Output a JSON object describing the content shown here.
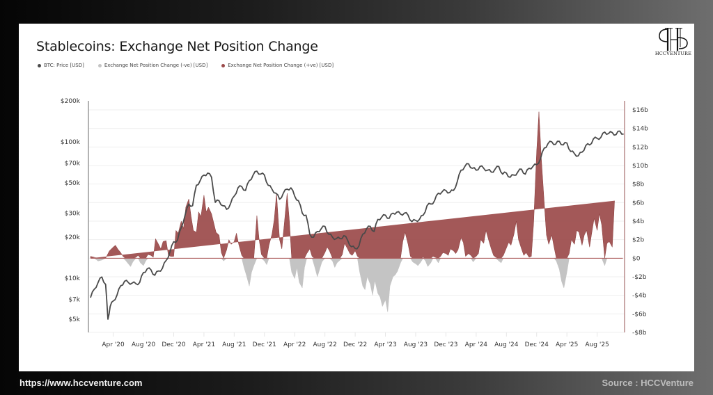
{
  "card": {
    "title": "Stablecoins: Exchange Net Position Change",
    "legend": [
      {
        "label": "BTC: Price [USD]",
        "color": "#4a4a4a"
      },
      {
        "label": "Exchange Net Position Change (-ve) [USD]",
        "color": "#c4c4c4"
      },
      {
        "label": "Exchange Net Position Change (+ve) [USD]",
        "color": "#9b4a4a"
      }
    ],
    "logo_text": "HCCVENTURE"
  },
  "footer": {
    "url": "https://www.hccventure.com",
    "source": "Source : HCCVenture"
  },
  "chart_data": {
    "type": "line",
    "title": "Stablecoins: Exchange Net Position Change",
    "x_start": "2020-01",
    "x_end": "2025-11",
    "xtick_labels": [
      "Apr '20",
      "Aug '20",
      "Dec '20",
      "Apr '21",
      "Aug '21",
      "Dec '21",
      "Apr '22",
      "Aug '22",
      "Dec '22",
      "Apr '23",
      "Aug '23",
      "Dec '23",
      "Apr '24",
      "Aug '24",
      "Dec '24",
      "Apr '25",
      "Aug '25"
    ],
    "xtick_months": [
      3,
      7,
      11,
      15,
      19,
      23,
      27,
      31,
      35,
      39,
      43,
      47,
      51,
      55,
      59,
      63,
      67
    ],
    "left_axis": {
      "scale": "log",
      "range": [
        4200,
        200000
      ],
      "tick_values": [
        5000,
        7000,
        10000,
        20000,
        30000,
        50000,
        70000,
        100000,
        200000
      ],
      "tick_labels": [
        "$5k",
        "$7k",
        "$10k",
        "$20k",
        "$30k",
        "$50k",
        "$70k",
        "$100k",
        "$200k"
      ]
    },
    "right_axis": {
      "scale": "linear",
      "range": [
        -8,
        17
      ],
      "unit": "billion USD",
      "tick_values": [
        -8,
        -6,
        -4,
        -2,
        0,
        2,
        4,
        6,
        8,
        10,
        12,
        14,
        16
      ],
      "tick_labels": [
        "-$8b",
        "-$6b",
        "-$4b",
        "-$2b",
        "$0",
        "$2b",
        "$4b",
        "$6b",
        "$8b",
        "$10b",
        "$12b",
        "$14b",
        "$16b"
      ]
    },
    "series": [
      {
        "name": "BTC: Price [USD]",
        "axis": "left",
        "color": "#4a4a4a",
        "months": [
          0,
          0.5,
          1,
          1.5,
          2,
          2.3,
          2.6,
          3,
          3.5,
          4,
          4.5,
          5,
          5.5,
          6,
          6.5,
          7,
          7.5,
          8,
          8.5,
          9,
          9.5,
          10,
          10.5,
          11,
          11.5,
          12,
          12.5,
          13,
          13.5,
          14,
          14.5,
          15,
          15.5,
          16,
          16.5,
          17,
          17.5,
          18,
          18.5,
          19,
          19.5,
          20,
          20.5,
          21,
          21.5,
          22,
          22.5,
          23,
          23.5,
          24,
          24.5,
          25,
          25.5,
          26,
          26.5,
          27,
          27.5,
          28,
          28.5,
          29,
          29.5,
          30,
          30.5,
          31,
          31.5,
          32,
          32.5,
          33,
          33.5,
          34,
          34.5,
          35,
          35.5,
          36,
          36.5,
          37,
          37.5,
          38,
          38.5,
          39,
          39.5,
          40,
          40.5,
          41,
          41.5,
          42,
          42.5,
          43,
          43.5,
          44,
          44.5,
          45,
          45.5,
          46,
          46.5,
          47,
          47.5,
          48,
          48.5,
          49,
          49.5,
          50,
          50.5,
          51,
          51.5,
          52,
          52.5,
          53,
          53.5,
          54,
          54.5,
          55,
          55.5,
          56,
          56.5,
          57,
          57.5,
          58,
          58.5,
          59,
          59.5,
          60,
          60.5,
          61,
          61.5,
          62,
          62.5,
          63,
          63.5,
          64,
          64.5,
          65,
          65.5,
          66,
          66.5,
          67,
          67.5,
          68,
          68.5,
          69,
          69.5,
          70,
          70.5
        ],
        "values": [
          7200,
          8300,
          9300,
          10200,
          9000,
          5000,
          6200,
          6800,
          7500,
          8800,
          9500,
          9300,
          9200,
          9100,
          9300,
          11000,
          11700,
          11500,
          10500,
          11300,
          11800,
          13500,
          15500,
          18500,
          19000,
          23500,
          29000,
          35000,
          34000,
          48000,
          52000,
          57000,
          59000,
          55000,
          36000,
          37000,
          34000,
          32000,
          35000,
          40000,
          46000,
          47000,
          44000,
          52000,
          57000,
          61000,
          58000,
          57000,
          48000,
          45000,
          42000,
          38000,
          42000,
          45000,
          46000,
          40000,
          37000,
          30000,
          29000,
          21000,
          20000,
          22000,
          23000,
          24000,
          21000,
          20000,
          19500,
          19500,
          20500,
          19000,
          17000,
          16500,
          17200,
          21000,
          23000,
          24000,
          22000,
          27000,
          28000,
          29000,
          27500,
          30000,
          30500,
          29500,
          30000,
          29000,
          26000,
          26500,
          27000,
          29000,
          34000,
          35000,
          37000,
          42000,
          43000,
          44000,
          42500,
          44000,
          51000,
          62000,
          66000,
          69000,
          64000,
          62000,
          66000,
          64000,
          62000,
          60000,
          63000,
          66000,
          58000,
          59000,
          55000,
          57000,
          60000,
          63000,
          58000,
          64000,
          66000,
          68000,
          75000,
          90000,
          97000,
          100000,
          96000,
          101000,
          95000,
          98000,
          85000,
          82000,
          79000,
          84000,
          94000,
          95000,
          105000,
          106000,
          108000,
          118000,
          115000,
          117000,
          113000,
          120000,
          114000,
          110000,
          121000,
          114000,
          112000
        ]
      },
      {
        "name": "Exchange Net Position Change [USD]",
        "axis": "right",
        "color_positive": "#9b4a4a",
        "color_negative": "#c4c4c4",
        "months": [
          0,
          0.5,
          1,
          1.5,
          2,
          2.5,
          3,
          3.3,
          3.6,
          4,
          4.3,
          4.6,
          5,
          5.3,
          5.6,
          6,
          6.3,
          6.6,
          7,
          7.3,
          7.6,
          8,
          8.3,
          8.6,
          9,
          9.3,
          9.6,
          10,
          10.3,
          10.6,
          11,
          11.3,
          11.6,
          12,
          12.3,
          12.6,
          13,
          13.3,
          13.6,
          14,
          14.3,
          14.6,
          15,
          15.3,
          15.6,
          16,
          16.3,
          16.6,
          17,
          17.3,
          17.6,
          18,
          18.3,
          18.6,
          19,
          19.3,
          19.6,
          20,
          20.3,
          20.6,
          21,
          21.3,
          21.6,
          22,
          22.3,
          22.6,
          23,
          23.3,
          23.6,
          24,
          24.3,
          24.6,
          25,
          25.3,
          25.6,
          26,
          26.3,
          26.6,
          27,
          27.3,
          27.6,
          28,
          28.3,
          28.6,
          29,
          29.3,
          29.6,
          30,
          30.3,
          30.6,
          31,
          31.3,
          31.6,
          32,
          32.3,
          32.6,
          33,
          33.3,
          33.6,
          34,
          34.3,
          34.6,
          35,
          35.3,
          35.6,
          36,
          36.3,
          36.6,
          37,
          37.3,
          37.6,
          38,
          38.3,
          38.6,
          39,
          39.3,
          39.6,
          40,
          40.3,
          40.6,
          41,
          41.3,
          41.6,
          42,
          42.3,
          42.6,
          43,
          43.3,
          43.6,
          44,
          44.3,
          44.6,
          45,
          45.3,
          45.6,
          46,
          46.3,
          46.6,
          47,
          47.3,
          47.6,
          48,
          48.3,
          48.6,
          49,
          49.3,
          49.6,
          50,
          50.3,
          50.6,
          51,
          51.3,
          51.6,
          52,
          52.3,
          52.6,
          53,
          53.3,
          53.6,
          54,
          54.3,
          54.6,
          55,
          55.3,
          55.6,
          56,
          56.3,
          56.6,
          57,
          57.3,
          57.6,
          58,
          58.3,
          58.6,
          59,
          59.3,
          59.6,
          60,
          60.3,
          60.6,
          61,
          61.3,
          61.6,
          62,
          62.3,
          62.6,
          63,
          63.3,
          63.6,
          64,
          64.3,
          64.6,
          65,
          65.3,
          65.6,
          66,
          66.3,
          66.6,
          67,
          67.3,
          67.6,
          68,
          68.3,
          68.6,
          69,
          69.3,
          69.6,
          70,
          70.4
        ],
        "values": [
          0.2,
          0.1,
          -0.3,
          -0.2,
          0,
          0.8,
          1.2,
          1.4,
          1.0,
          0.6,
          0.2,
          -0.2,
          -0.6,
          -0.9,
          -0.4,
          0.1,
          0.3,
          -0.5,
          -0.8,
          -0.3,
          0.4,
          0.3,
          0.1,
          2.1,
          1.5,
          1.0,
          1.8,
          1.9,
          0.3,
          0.2,
          0.2,
          3.0,
          2.7,
          4.0,
          3.2,
          5.5,
          6.4,
          4.5,
          3.0,
          2.8,
          5.0,
          4.5,
          6.8,
          5.0,
          5.5,
          4.8,
          3.8,
          2.8,
          2.5,
          0.6,
          -0.3,
          0.9,
          2.0,
          1.5,
          1.8,
          2.7,
          1.5,
          0.3,
          -1.0,
          -1.8,
          -3.0,
          -1.5,
          -0.8,
          4.6,
          2.0,
          0.4,
          -0.3,
          -0.7,
          1.4,
          2.6,
          4.2,
          7.0,
          2.0,
          1.0,
          3.5,
          7.0,
          4.0,
          -1.5,
          -2.2,
          -1.0,
          -2.6,
          -3.2,
          -1.0,
          0.5,
          1.0,
          0.2,
          -0.8,
          -2.0,
          -1.2,
          -0.4,
          0.6,
          1.2,
          0.8,
          -0.3,
          -1.0,
          -0.5,
          -0.2,
          0.4,
          1.6,
          1.0,
          0.5,
          0.3,
          0.8,
          0.2,
          -1.5,
          -3.0,
          -3.4,
          -2.0,
          -2.8,
          -4.0,
          -2.4,
          -3.8,
          -4.2,
          -5.2,
          -4.5,
          -5.8,
          -3.0,
          -2.0,
          -1.8,
          -1.4,
          -0.5,
          1.8,
          2.8,
          1.5,
          0.2,
          -0.4,
          -0.6,
          -0.8,
          -0.5,
          0.1,
          -0.3,
          -0.9,
          -0.5,
          0.2,
          0.1,
          -0.5,
          0.2,
          0.6,
          0.5,
          0.3,
          1.0,
          0.8,
          0.5,
          0.9,
          2.2,
          1.7,
          0.2,
          0.5,
          0.3,
          -0.4,
          0.2,
          0.5,
          2.0,
          1.6,
          3.0,
          2.1,
          1.0,
          0.3,
          0.1,
          -0.3,
          -0.5,
          0.3,
          1.1,
          1.7,
          1.4,
          2.6,
          4.0,
          2.0,
          1.0,
          0.3,
          0.6,
          0.1,
          0.2,
          3.8,
          11.5,
          15.8,
          11.0,
          6.0,
          2.5,
          1.5,
          2.5,
          1.2,
          -0.3,
          -1.2,
          -2.5,
          -3.2,
          -1.5,
          0.5,
          2.0,
          1.5,
          3.0,
          2.8,
          1.4,
          2.5,
          3.0,
          1.2,
          2.8,
          4.3,
          3.0,
          4.8,
          3.6,
          -0.8,
          1.6,
          1.8,
          1.2,
          6.2
        ]
      }
    ],
    "grid": true,
    "legend_position": "top-left"
  }
}
